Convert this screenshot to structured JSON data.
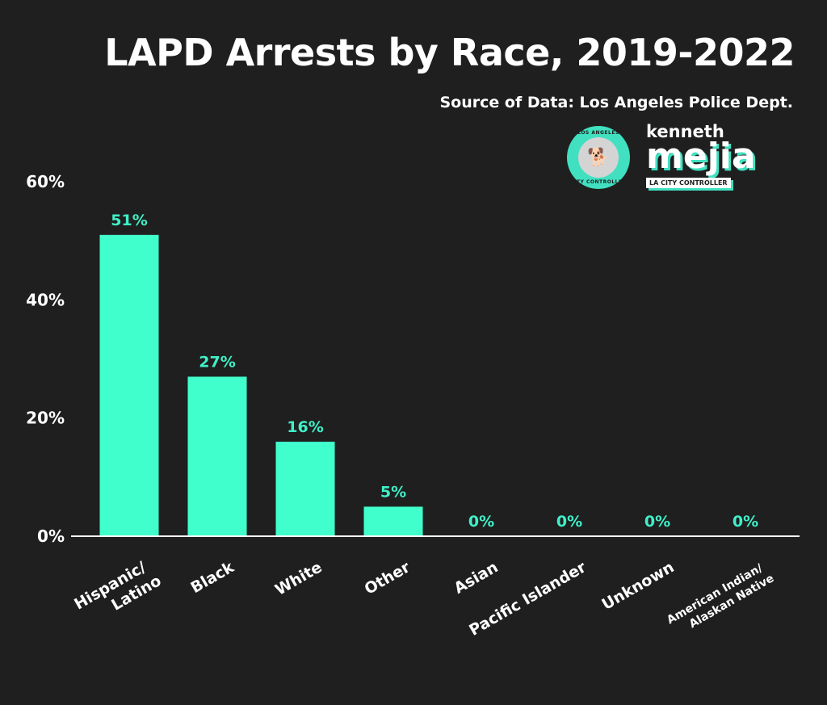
{
  "header": {
    "title": "LAPD Arrests by Race, 2019-2022",
    "subtitle": "Source of Data: Los Angeles Police Dept."
  },
  "logos": {
    "seal_top": "LOS ANGELES",
    "seal_bottom": "CITY CONTROLLER",
    "seal_icon": "dog-icon",
    "brand_first": "kenneth",
    "brand_last": "mejia",
    "brand_tag": "LA CITY CONTROLLER"
  },
  "colors": {
    "background": "#1f1f1f",
    "bar": "#40ffcc",
    "value_label": "#40f0c8",
    "text": "#ffffff",
    "axis": "#ffffff"
  },
  "chart_data": {
    "type": "bar",
    "title": "LAPD Arrests by Race, 2019-2022",
    "subtitle": "Source of Data: Los Angeles Police Dept.",
    "xlabel": "",
    "ylabel": "",
    "categories": [
      [
        "Hispanic/",
        "Latino"
      ],
      [
        "Black"
      ],
      [
        "White"
      ],
      [
        "Other"
      ],
      [
        "Asian"
      ],
      [
        "Pacific Islander"
      ],
      [
        "Unknown"
      ],
      [
        "American Indian/",
        "Alaskan Native"
      ]
    ],
    "values": [
      51,
      27,
      16,
      5,
      0,
      0,
      0,
      0
    ],
    "value_labels": [
      "51%",
      "27%",
      "16%",
      "5%",
      "0%",
      "0%",
      "0%",
      "0%"
    ],
    "yticks": [
      0,
      20,
      40,
      60
    ],
    "ytick_labels": [
      "0%",
      "20%",
      "40%",
      "60%"
    ],
    "ylim": [
      0,
      60
    ],
    "grid": false,
    "legend": "none"
  }
}
